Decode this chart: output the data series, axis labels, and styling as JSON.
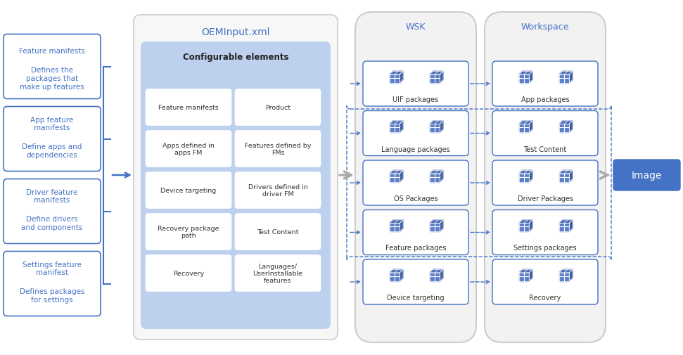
{
  "bg_color": "#ffffff",
  "blue_dark": "#4472C4",
  "blue_light": "#BDD0EE",
  "blue_text": "#4472C4",
  "gray_fill": "#F0F0F0",
  "gray_border": "#C0C0C0",
  "box_border": "#4472C4",
  "left_boxes": [
    {
      "title": "Feature manifests",
      "subtitle": "Defines the\npackages that\nmake up features"
    },
    {
      "title": "App feature\nmanifests",
      "subtitle": "Define apps and\ndependencies"
    },
    {
      "title": "Driver feature\nmanifests",
      "subtitle": "Define drivers\nand components"
    },
    {
      "title": "Settings feature\nmanifest",
      "subtitle": "Defines packages\nfor settings"
    }
  ],
  "oem_title": "OEMInput.xml",
  "configurable_title": "Configurable elements",
  "config_items_left": [
    "Feature manifests",
    "Apps defined in\napps FM",
    "Device targeting",
    "Recovery package\npath",
    "Recovery"
  ],
  "config_items_right": [
    "Product",
    "Features defined by\nFMs",
    "Drivers defined in\ndriver FM",
    "Test Content",
    "Languages/\nUserInstallable\nfeatures"
  ],
  "wsk_label": "WSK",
  "workspace_label": "Workspace",
  "wsk_packages": [
    "UIF packages",
    "Language packages",
    "OS Packages",
    "Feature packages",
    "Device targeting"
  ],
  "workspace_packages": [
    "App packages",
    "Test Content",
    "Driver Packages",
    "Settings packages",
    "Recovery"
  ],
  "image_label": "Image"
}
